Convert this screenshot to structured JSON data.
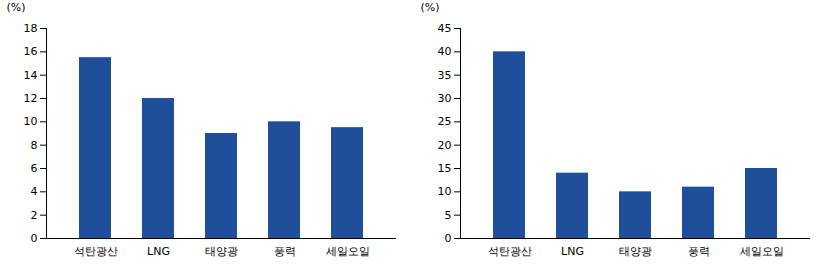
{
  "chart_data": [
    {
      "type": "bar",
      "categories": [
        "석탄광산",
        "LNG",
        "태양광",
        "풍력",
        "세일오일"
      ],
      "values": [
        15.5,
        12,
        9,
        10,
        9.5
      ],
      "color": "#1F4E9A",
      "y_label": "(%)",
      "ylim": [
        0,
        18
      ],
      "yticks": [
        0,
        2,
        4,
        6,
        8,
        10,
        12,
        14,
        16,
        18
      ],
      "grid": false
    },
    {
      "type": "bar",
      "categories": [
        "석탄광산",
        "LNG",
        "태양광",
        "풍력",
        "세일오일"
      ],
      "values": [
        40,
        14,
        10,
        11,
        15
      ],
      "color": "#1F4E9A",
      "y_label": "(%)",
      "ylim": [
        0,
        45
      ],
      "yticks": [
        0,
        5,
        10,
        15,
        20,
        25,
        30,
        35,
        40,
        45
      ],
      "grid": false
    }
  ]
}
